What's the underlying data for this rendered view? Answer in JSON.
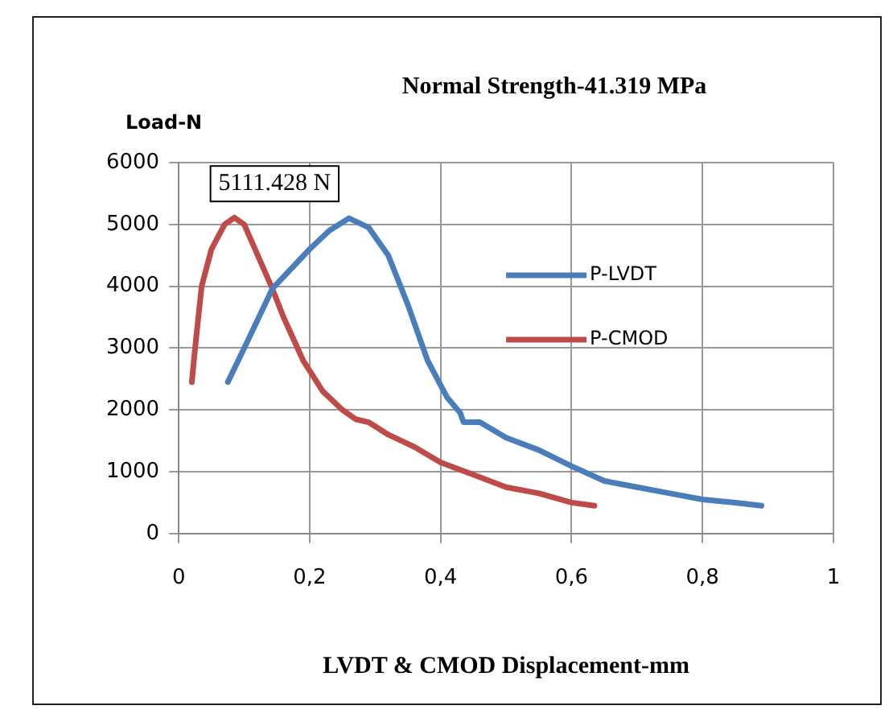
{
  "chart_data": {
    "type": "line",
    "title": "Normal Strength-41.319 MPa",
    "xlabel": "LVDT & CMOD Displacement-mm",
    "ylabel": "Load-N",
    "xlim": [
      0,
      1
    ],
    "xticks": [
      0,
      {
        "value": 0.2,
        "label": "0,2"
      },
      {
        "value": 0.4,
        "label": "0,4"
      },
      {
        "value": 0.6,
        "label": "0,6"
      },
      {
        "value": 0.8,
        "label": "0,8"
      },
      1
    ],
    "ylim": [
      0,
      6000
    ],
    "yticks": [
      0,
      1000,
      2000,
      3000,
      4000,
      5000,
      6000
    ],
    "grid": true,
    "legend": "right",
    "marker": "none",
    "line_style": "solid",
    "annotations": [
      {
        "text": "5111.428 N",
        "x": 0.085,
        "y": 5111
      }
    ],
    "series": [
      {
        "name": "P-LVDT",
        "color": "#4a7ebb",
        "x": [
          0.075,
          0.1,
          0.143,
          0.2,
          0.23,
          0.26,
          0.29,
          0.32,
          0.35,
          0.38,
          0.41,
          0.43,
          0.435,
          0.46,
          0.5,
          0.55,
          0.6,
          0.65,
          0.7,
          0.75,
          0.8,
          0.85,
          0.89
        ],
        "values": [
          2450,
          3000,
          3960,
          4600,
          4900,
          5100,
          4950,
          4500,
          3700,
          2800,
          2200,
          1950,
          1800,
          1800,
          1550,
          1350,
          1090,
          850,
          750,
          650,
          550,
          500,
          450
        ]
      },
      {
        "name": "P-CMOD",
        "color": "#be4b48",
        "x": [
          0.02,
          0.025,
          0.035,
          0.05,
          0.07,
          0.085,
          0.1,
          0.143,
          0.16,
          0.19,
          0.22,
          0.25,
          0.27,
          0.29,
          0.32,
          0.36,
          0.4,
          0.45,
          0.5,
          0.55,
          0.6,
          0.635
        ],
        "values": [
          2450,
          3000,
          4000,
          4600,
          5000,
          5111,
          5000,
          3960,
          3500,
          2800,
          2300,
          2000,
          1850,
          1800,
          1600,
          1400,
          1150,
          950,
          750,
          650,
          500,
          450
        ]
      }
    ]
  }
}
